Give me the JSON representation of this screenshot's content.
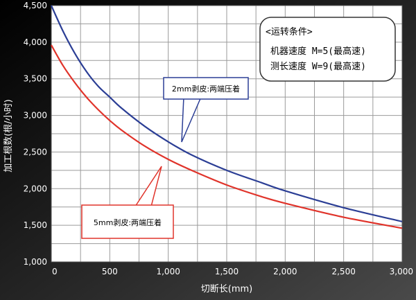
{
  "chart_data": {
    "type": "line",
    "xlabel": "切断长(mm)",
    "ylabel": "加工根数(根/小时)",
    "xlim": [
      0,
      3000
    ],
    "ylim": [
      1000,
      4500
    ],
    "x_ticks": [
      "0",
      "500",
      "1,000",
      "1,500",
      "2,000",
      "2,500",
      "3,000"
    ],
    "x_tick_values": [
      0,
      500,
      1000,
      1500,
      2000,
      2500,
      3000
    ],
    "y_ticks": [
      "1,000",
      "1,500",
      "2,000",
      "2,500",
      "3,000",
      "3,500",
      "4,000",
      "4,500"
    ],
    "y_tick_values": [
      1000,
      1500,
      2000,
      2500,
      3000,
      3500,
      4000,
      4500
    ],
    "grid": true,
    "series": [
      {
        "name": "2mm剥皮:两端压着",
        "color": "#2b3e95",
        "x": [
          0,
          100,
          200,
          300,
          400,
          500,
          600,
          800,
          1000,
          1200,
          1500,
          1800,
          2000,
          2500,
          3000
        ],
        "y": [
          4500,
          4150,
          3850,
          3600,
          3400,
          3250,
          3100,
          2850,
          2640,
          2460,
          2250,
          2080,
          1970,
          1740,
          1550
        ]
      },
      {
        "name": "5mm剥皮:两端压着",
        "color": "#e0332a",
        "x": [
          0,
          100,
          200,
          300,
          400,
          500,
          600,
          800,
          1000,
          1200,
          1500,
          1800,
          2000,
          2500,
          3000
        ],
        "y": [
          3960,
          3680,
          3450,
          3250,
          3080,
          2930,
          2800,
          2580,
          2400,
          2250,
          2050,
          1890,
          1800,
          1610,
          1460
        ]
      }
    ],
    "conditions": {
      "title": "<运转条件>",
      "line1": "机器速度 M=5(最高速)",
      "line2": "测长速度 W=9(最高速)"
    }
  }
}
